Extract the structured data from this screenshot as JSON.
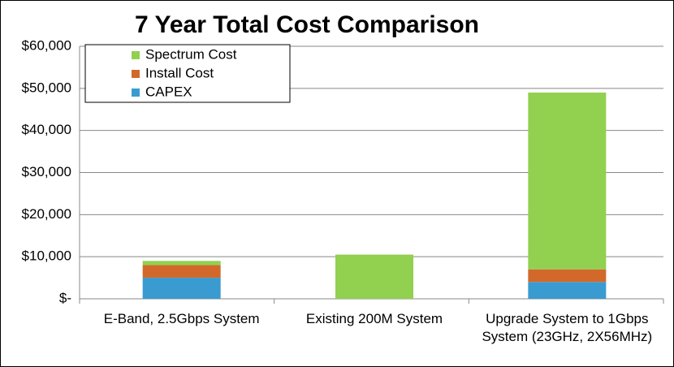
{
  "chart_data": {
    "type": "stacked-bar",
    "title": "7 Year Total Cost Comparison",
    "categories": [
      "E-Band, 2.5Gbps System",
      "Existing 200M System",
      "Upgrade System to 1Gbps System (23GHz, 2X56MHz)"
    ],
    "series": [
      {
        "name": "CAPEX",
        "color": "#3a9bd0",
        "values": [
          5000,
          0,
          4000
        ]
      },
      {
        "name": "Install Cost",
        "color": "#d2692b",
        "values": [
          3000,
          0,
          3000
        ]
      },
      {
        "name": "Spectrum Cost",
        "color": "#92d050",
        "values": [
          1000,
          10500,
          42000
        ]
      }
    ],
    "ylim": [
      0,
      60000
    ],
    "yticks": [
      {
        "value": 0,
        "label": "$-"
      },
      {
        "value": 10000,
        "label": "$10,000"
      },
      {
        "value": 20000,
        "label": "$20,000"
      },
      {
        "value": 30000,
        "label": "$30,000"
      },
      {
        "value": 40000,
        "label": "$40,000"
      },
      {
        "value": 50000,
        "label": "$50,000"
      },
      {
        "value": 60000,
        "label": "$60,000"
      }
    ],
    "grid": true
  }
}
